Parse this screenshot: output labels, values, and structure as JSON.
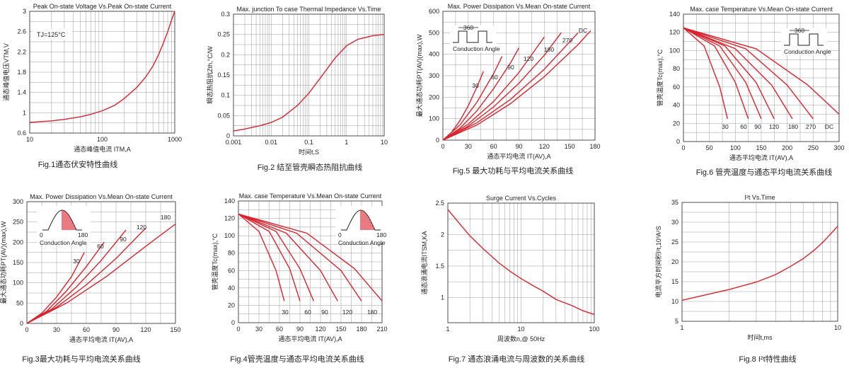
{
  "colors": {
    "curve": "#d9232d",
    "grid": "#999999",
    "frame": "#222222"
  },
  "chart_data": [
    {
      "id": "fig1",
      "type": "line",
      "title": "Peak On-state Voltage Vs.Peak On-state Current",
      "xlabel": "通态峰值电流 ITM,A",
      "ylabel": "通态峰值电压VTM,V",
      "caption": "Fig.1通态伏安特性曲线",
      "xscale": "log",
      "xlim": [
        10,
        1000
      ],
      "ylim": [
        0.6,
        3
      ],
      "xticks": [
        10,
        100,
        1000
      ],
      "xtick_labels": [
        "10",
        "100",
        "1000"
      ],
      "yticks": [
        0.6,
        1,
        1.4,
        1.8,
        2.2,
        2.6,
        3
      ],
      "ytick_labels": [
        "0.6",
        "1",
        "1.4",
        "1.8",
        "2.2",
        "2.6",
        "3"
      ],
      "annotation": "TJ=125°C",
      "series": [
        {
          "x": [
            10,
            20,
            30,
            50,
            70,
            100,
            150,
            200,
            300,
            400,
            500,
            600,
            700,
            800,
            900,
            1000
          ],
          "y": [
            0.81,
            0.84,
            0.87,
            0.92,
            0.97,
            1.04,
            1.15,
            1.28,
            1.5,
            1.71,
            1.92,
            2.15,
            2.38,
            2.6,
            2.82,
            3.0
          ]
        }
      ]
    },
    {
      "id": "fig2",
      "type": "line",
      "title": "Max. junction To case Thermal Impedance Vs.Time",
      "xlabel": "时间t,S",
      "ylabel": "瞬态热阻抗Zth,°C/W",
      "caption": "Fig.2 结至管壳瞬态热阻抗曲线",
      "xscale": "log",
      "xlim": [
        0.001,
        10
      ],
      "ylim": [
        0,
        0.3
      ],
      "xticks": [
        0.001,
        0.01,
        0.1,
        1,
        10
      ],
      "xtick_labels": [
        "0.001",
        "0.01",
        "0.1",
        "1",
        "10"
      ],
      "yticks": [
        0,
        0.05,
        0.1,
        0.15,
        0.2,
        0.25,
        0.3
      ],
      "ytick_labels": [
        "0",
        "0.05",
        "0.1",
        "0.15",
        "0.2",
        "0.25",
        "0.3"
      ],
      "series": [
        {
          "x": [
            0.001,
            0.002,
            0.005,
            0.01,
            0.02,
            0.05,
            0.1,
            0.2,
            0.5,
            1,
            2,
            5,
            10
          ],
          "y": [
            0.012,
            0.017,
            0.025,
            0.033,
            0.046,
            0.075,
            0.105,
            0.142,
            0.192,
            0.222,
            0.238,
            0.247,
            0.25
          ]
        }
      ]
    },
    {
      "id": "fig5",
      "type": "line",
      "title": "Max. Power Dissipation Vs.Mean On-state Current",
      "xlabel": "通态平均电流 IT(AV),A",
      "ylabel": "最大通态功耗PT(AV)(max),W",
      "caption": "Fig.5 最大功耗与平均电流关系曲线",
      "xlim": [
        0,
        180
      ],
      "ylim": [
        0,
        600
      ],
      "xticks": [
        0,
        30,
        60,
        90,
        120,
        150,
        180
      ],
      "xtick_labels": [
        "0",
        "30",
        "60",
        "90",
        "120",
        "150",
        "180"
      ],
      "yticks": [
        0,
        100,
        200,
        300,
        400,
        500,
        600
      ],
      "ytick_labels": [
        "0",
        "100",
        "200",
        "300",
        "400",
        "500",
        "600"
      ],
      "inset": {
        "period": "360",
        "label": "Conduction Angle",
        "waveform": "rectangular"
      },
      "series": [
        {
          "name": "30",
          "x": [
            0,
            10,
            20,
            30,
            40,
            48
          ],
          "y": [
            0,
            35,
            90,
            160,
            245,
            320
          ]
        },
        {
          "name": "60",
          "x": [
            0,
            20,
            40,
            60,
            70
          ],
          "y": [
            0,
            70,
            175,
            310,
            390
          ]
        },
        {
          "name": "90",
          "x": [
            0,
            20,
            40,
            60,
            80,
            90
          ],
          "y": [
            0,
            55,
            135,
            240,
            360,
            430
          ]
        },
        {
          "name": "120",
          "x": [
            0,
            30,
            60,
            90,
            120
          ],
          "y": [
            0,
            75,
            180,
            315,
            480
          ]
        },
        {
          "name": "180",
          "x": [
            0,
            30,
            60,
            90,
            120,
            140
          ],
          "y": [
            0,
            65,
            155,
            265,
            395,
            500
          ]
        },
        {
          "name": "270",
          "x": [
            0,
            40,
            80,
            120,
            160
          ],
          "y": [
            0,
            80,
            190,
            330,
            500
          ]
        },
        {
          "name": "DC",
          "x": [
            0,
            40,
            80,
            120,
            160,
            175
          ],
          "y": [
            0,
            70,
            170,
            295,
            445,
            510
          ]
        }
      ]
    },
    {
      "id": "fig6",
      "type": "line",
      "title": "Max. case Temperature Vs.Mean On-state Current",
      "xlabel": "通态平均电流 IT(AV),A",
      "ylabel": "管壳温度Tc(max),°C",
      "caption": "Fig.6 管壳温度与通态平均电流关系曲线",
      "xlim": [
        0,
        300
      ],
      "ylim": [
        0,
        140
      ],
      "xticks": [
        0,
        50,
        100,
        150,
        200,
        250,
        300
      ],
      "xtick_labels": [
        "0",
        "50",
        "100",
        "150",
        "200",
        "250",
        "300"
      ],
      "yticks": [
        0,
        20,
        40,
        60,
        80,
        100,
        120,
        140
      ],
      "ytick_labels": [
        "0",
        "20",
        "40",
        "60",
        "80",
        "100",
        "120",
        "140"
      ],
      "inset": {
        "period": "360",
        "label": "Conduction Angle",
        "waveform": "rectangular"
      },
      "series": [
        {
          "name": "30",
          "x": [
            0,
            40,
            70,
            85
          ],
          "y": [
            125,
            105,
            60,
            25
          ]
        },
        {
          "name": "60",
          "x": [
            0,
            60,
            100,
            125
          ],
          "y": [
            125,
            105,
            65,
            25
          ]
        },
        {
          "name": "90",
          "x": [
            0,
            70,
            120,
            150
          ],
          "y": [
            125,
            105,
            65,
            25
          ]
        },
        {
          "name": "120",
          "x": [
            0,
            80,
            140,
            175
          ],
          "y": [
            125,
            105,
            65,
            25
          ]
        },
        {
          "name": "180",
          "x": [
            0,
            100,
            170,
            210
          ],
          "y": [
            125,
            102,
            62,
            25
          ]
        },
        {
          "name": "270",
          "x": [
            0,
            120,
            200,
            250
          ],
          "y": [
            125,
            102,
            62,
            25
          ]
        },
        {
          "name": "DC",
          "x": [
            0,
            140,
            240,
            300
          ],
          "y": [
            125,
            102,
            62,
            30
          ]
        }
      ]
    },
    {
      "id": "fig3",
      "type": "line",
      "title": "Max. Power Dissipation Vs.Mean On-state Current",
      "xlabel": "通态平均电流 IT(AV),A",
      "ylabel": "最大通态功耗PT(AV)(max),W",
      "caption": "Fig.3最大功耗与平均电流关系曲线",
      "xlim": [
        0,
        150
      ],
      "ylim": [
        0,
        300
      ],
      "xticks": [
        0,
        30,
        60,
        90,
        120,
        150
      ],
      "xtick_labels": [
        "0",
        "30",
        "60",
        "90",
        "120",
        "150"
      ],
      "yticks": [
        0,
        50,
        100,
        150,
        200,
        250,
        300
      ],
      "ytick_labels": [
        "0",
        "50",
        "100",
        "150",
        "200",
        "250",
        "300"
      ],
      "inset": {
        "left": "0",
        "right": "180",
        "label": "Conduction Angle",
        "waveform": "sinusoidal"
      },
      "series": [
        {
          "name": "30",
          "x": [
            0,
            15,
            30,
            45,
            58
          ],
          "y": [
            0,
            25,
            65,
            115,
            175
          ]
        },
        {
          "name": "60",
          "x": [
            0,
            20,
            40,
            60,
            78
          ],
          "y": [
            0,
            30,
            80,
            140,
            200
          ]
        },
        {
          "name": "90",
          "x": [
            0,
            25,
            50,
            75,
            100
          ],
          "y": [
            0,
            35,
            90,
            155,
            230
          ]
        },
        {
          "name": "120",
          "x": [
            0,
            30,
            60,
            90,
            120
          ],
          "y": [
            0,
            40,
            95,
            160,
            235
          ]
        },
        {
          "name": "180",
          "x": [
            0,
            40,
            80,
            120,
            150
          ],
          "y": [
            0,
            50,
            115,
            190,
            245
          ]
        }
      ]
    },
    {
      "id": "fig4",
      "type": "line",
      "title": "Max. case Temperature Vs.Mean On-state Current",
      "xlabel": "通态平均电流 IT(AV),A",
      "ylabel": "管壳温度Tc(max),°C",
      "caption": "Fig.4管壳温度与通态平均电流关系曲线",
      "xlim": [
        0,
        210
      ],
      "ylim": [
        0,
        140
      ],
      "xticks": [
        0,
        30,
        60,
        90,
        120,
        150,
        180,
        210
      ],
      "xtick_labels": [
        "0",
        "30",
        "60",
        "90",
        "120",
        "150",
        "180",
        "210"
      ],
      "yticks": [
        0,
        20,
        40,
        60,
        80,
        100,
        120,
        140
      ],
      "ytick_labels": [
        "0",
        "20",
        "40",
        "60",
        "80",
        "100",
        "120",
        "140"
      ],
      "inset": {
        "left": "0",
        "right": "180",
        "label": "Conduction Angle",
        "waveform": "sinusoidal"
      },
      "series": [
        {
          "name": "30",
          "x": [
            0,
            30,
            55,
            67
          ],
          "y": [
            125,
            105,
            60,
            25
          ]
        },
        {
          "name": "60",
          "x": [
            0,
            45,
            75,
            90
          ],
          "y": [
            125,
            105,
            62,
            25
          ]
        },
        {
          "name": "90",
          "x": [
            0,
            55,
            90,
            110
          ],
          "y": [
            125,
            105,
            62,
            25
          ]
        },
        {
          "name": "120",
          "x": [
            0,
            70,
            120,
            145
          ],
          "y": [
            125,
            103,
            60,
            25
          ]
        },
        {
          "name": "180",
          "x": [
            0,
            85,
            150,
            180
          ],
          "y": [
            125,
            103,
            60,
            25
          ]
        },
        {
          "name": "",
          "x": [
            0,
            100,
            170,
            210
          ],
          "y": [
            125,
            103,
            62,
            25
          ]
        }
      ]
    },
    {
      "id": "fig7",
      "type": "line",
      "title": "Surge Current Vs.Cycles",
      "xlabel": "周波数n,@ 50Hz",
      "ylabel": "通态浪涌电流ITSM,KA",
      "caption": "Fig.7 通态浪涌电流与周波数的关系曲线",
      "xscale": "log",
      "xlim": [
        1,
        100
      ],
      "ylim": [
        0.6,
        2.5
      ],
      "xticks": [
        1,
        10,
        100
      ],
      "xtick_labels": [
        "1",
        "10",
        "100"
      ],
      "yticks": [
        1,
        1.5,
        2,
        2.5
      ],
      "ytick_labels": [
        "1",
        "1.5",
        "2",
        "2.5"
      ],
      "series": [
        {
          "x": [
            1,
            1.5,
            2,
            3,
            5,
            7,
            10,
            15,
            20,
            30,
            50,
            70,
            100
          ],
          "y": [
            2.4,
            2.15,
            1.98,
            1.78,
            1.55,
            1.42,
            1.3,
            1.18,
            1.1,
            0.97,
            0.87,
            0.79,
            0.73
          ]
        }
      ]
    },
    {
      "id": "fig8",
      "type": "line",
      "title": "I²t Vs.Time",
      "xlabel": "时间t,ms",
      "ylabel": "电流平方时间积I²t,10³A²S",
      "caption": "Fig.8 I²t特性曲线",
      "xscale": "log",
      "xlim": [
        1,
        10
      ],
      "ylim": [
        5,
        35
      ],
      "xticks": [
        1,
        10
      ],
      "xtick_labels": [
        "1",
        "10"
      ],
      "yticks": [
        5,
        10,
        15,
        20,
        25,
        30,
        35
      ],
      "ytick_labels": [
        "5",
        "10",
        "15",
        "20",
        "25",
        "30",
        "35"
      ],
      "series": [
        {
          "x": [
            1,
            1.5,
            2,
            3,
            4,
            5,
            6,
            7,
            8,
            9,
            10
          ],
          "y": [
            10.3,
            11.9,
            13.0,
            14.9,
            16.8,
            18.9,
            20.8,
            22.8,
            24.9,
            27.0,
            29.0
          ]
        }
      ]
    }
  ]
}
